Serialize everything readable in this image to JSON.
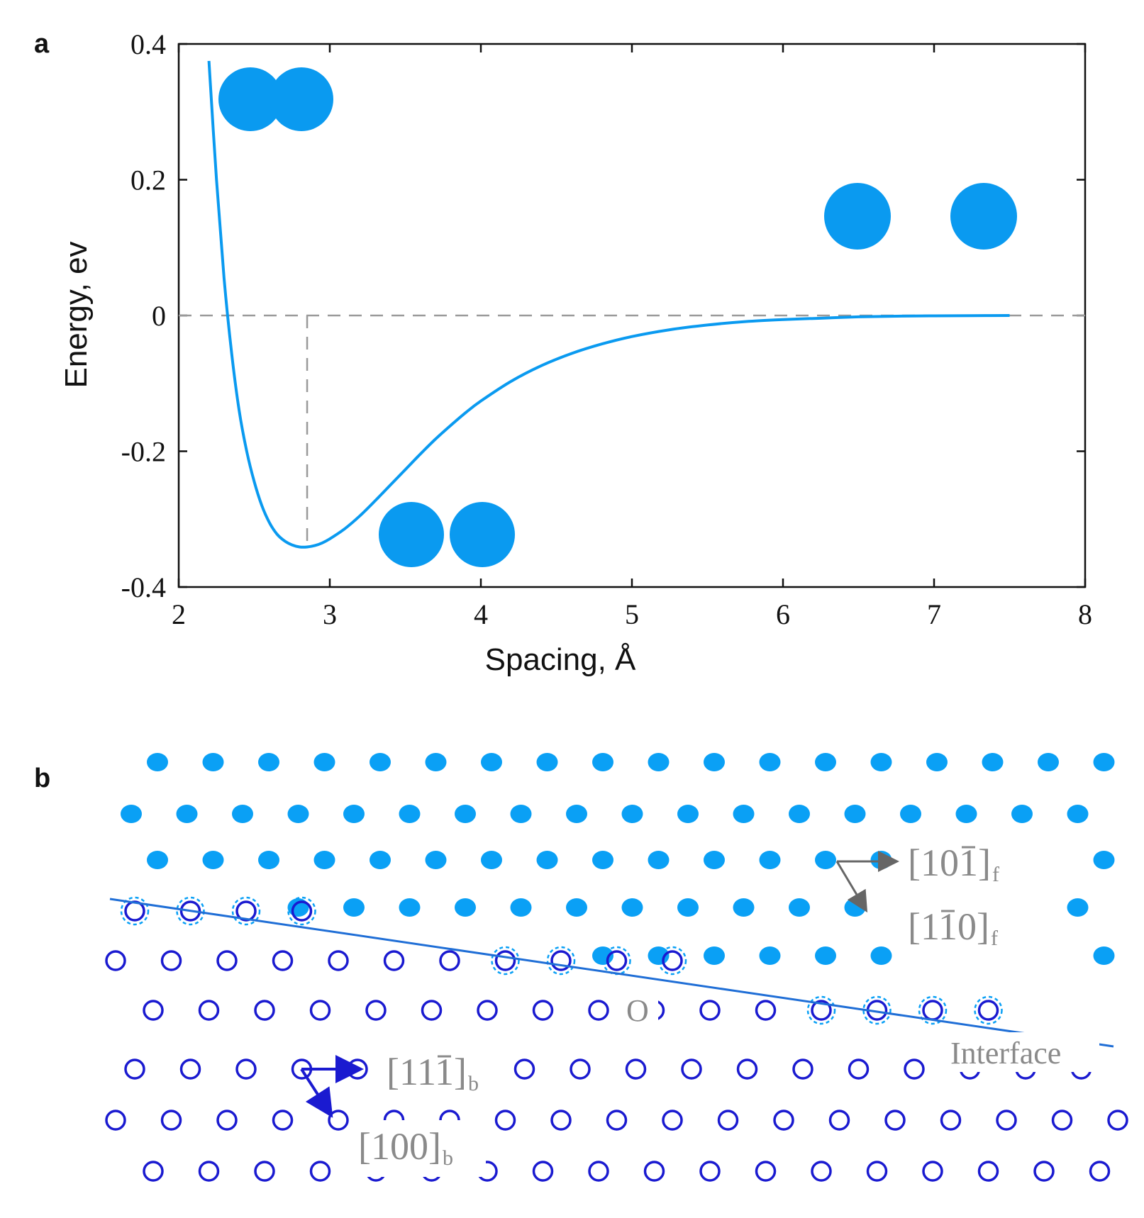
{
  "panel_a": {
    "letter": "a"
  },
  "panel_b": {
    "letter": "b",
    "fcc_dir1": {
      "main": "[10",
      "bar": "1",
      "close": "]",
      "sub": "f"
    },
    "fcc_dir2": {
      "main": "[1",
      "bar": "1",
      "close": "0]",
      "sub": "f"
    },
    "bcc_dir1": {
      "main": "[11",
      "bar": "1",
      "close": "]",
      "sub": "b"
    },
    "bcc_dir2": {
      "main": "[100]",
      "sub": "b"
    },
    "origin_label": "O",
    "interface_label": "Interface",
    "colors": {
      "fcc_atom": "#0aa0f5",
      "bcc_atom": "#1a1ad0",
      "interface_line": "#1f6ed6",
      "arrow_gray": "#666666"
    }
  },
  "chart_data": {
    "type": "line",
    "title": "",
    "xlabel": "Spacing, Å",
    "ylabel": "Energy, ev",
    "xlim": [
      2,
      8
    ],
    "ylim": [
      -0.4,
      0.4
    ],
    "xticks": [
      "2",
      "3",
      "4",
      "5",
      "6",
      "7",
      "8"
    ],
    "yticks": [
      "-0.4",
      "-0.2",
      "0",
      "0.2",
      "0.4"
    ],
    "grid": false,
    "series": [
      {
        "color": "#0a9af0",
        "x": [
          2.2,
          2.25,
          2.3,
          2.35,
          2.4,
          2.45,
          2.5,
          2.55,
          2.6,
          2.65,
          2.7,
          2.75,
          2.8,
          2.85,
          2.9,
          2.95,
          3.0,
          3.1,
          3.2,
          3.3,
          3.4,
          3.5,
          3.6,
          3.7,
          3.8,
          3.9,
          4.0,
          4.2,
          4.4,
          4.6,
          4.8,
          5.0,
          5.25,
          5.5,
          5.75,
          6.0,
          6.25,
          6.5,
          6.75,
          7.0,
          7.25,
          7.5
        ],
        "y": [
          0.375,
          0.2,
          0.055,
          -0.055,
          -0.14,
          -0.2,
          -0.245,
          -0.28,
          -0.305,
          -0.322,
          -0.332,
          -0.338,
          -0.341,
          -0.341,
          -0.339,
          -0.335,
          -0.329,
          -0.314,
          -0.295,
          -0.273,
          -0.25,
          -0.227,
          -0.204,
          -0.182,
          -0.162,
          -0.143,
          -0.126,
          -0.097,
          -0.074,
          -0.056,
          -0.042,
          -0.031,
          -0.021,
          -0.014,
          -0.009,
          -0.006,
          -0.004,
          -0.002,
          -0.001,
          -0.0005,
          -0.0002,
          0.0
        ]
      }
    ],
    "reference_lines": {
      "horizontal_y": 0,
      "vertical_x": 2.85
    },
    "atom_pair_colors": "#0a9af0"
  }
}
